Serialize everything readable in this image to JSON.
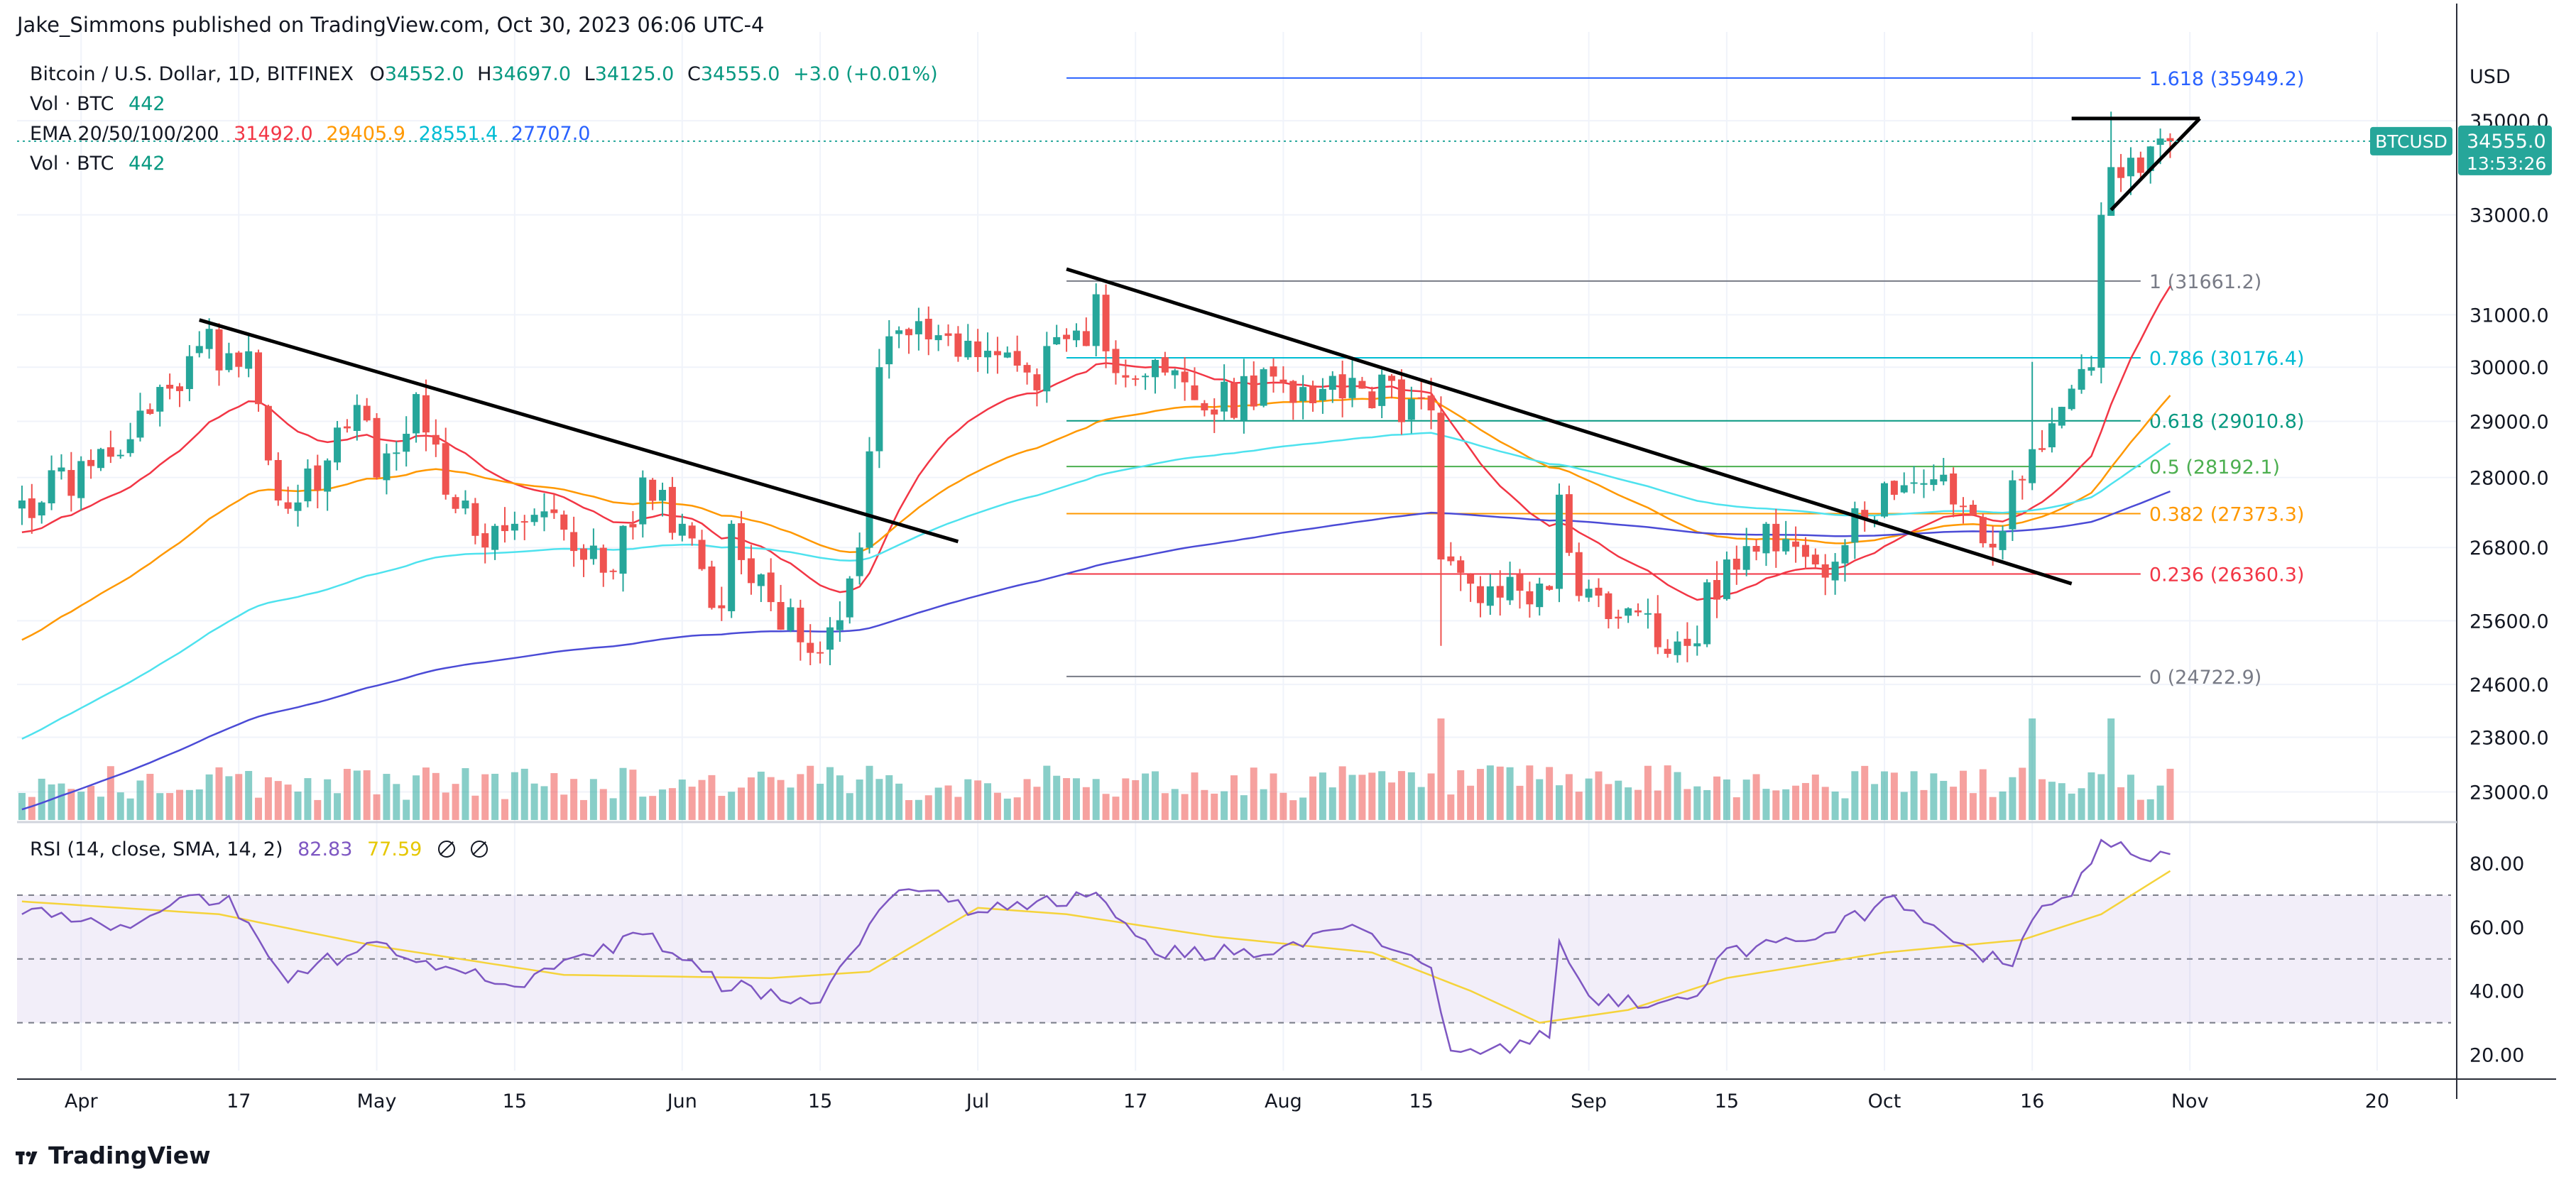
{
  "publisher_line": "Jake_Simmons published on TradingView.com, Oct 30, 2023 06:06 UTC-4",
  "legend": {
    "symbol": "Bitcoin / U.S. Dollar, 1D, BITFINEX",
    "o_label": "O",
    "o": "34552.0",
    "h_label": "H",
    "h": "34697.0",
    "l_label": "L",
    "l": "34125.0",
    "c_label": "C",
    "c": "34555.0",
    "change": "+3.0 (+0.01%)",
    "vol_label": "Vol · BTC",
    "vol": "442",
    "ema_label": "EMA 20/50/100/200",
    "ema20": "31492.0",
    "ema50": "29405.9",
    "ema100": "28551.4",
    "ema200": "27707.0"
  },
  "rsi_legend": {
    "label": "RSI (14, close, SMA, 14, 2)",
    "rsi": "82.83",
    "sma": "77.59"
  },
  "currency": "USD",
  "last_price": {
    "symbol": "BTCUSD",
    "price": "34555.0",
    "countdown": "13:53:26"
  },
  "watermark": "TradingView",
  "colors": {
    "up": "#26a69a",
    "down": "#ef5350",
    "ema20": "#f23645",
    "ema50": "#ff9800",
    "ema100": "#4ee2ee",
    "ema200": "#4b4bd6",
    "rsi": "#7e57c2",
    "rsi_sma": "#f5d33b"
  },
  "chart_data": {
    "type": "candlestick",
    "price_axis": {
      "scale": "log",
      "ticks": [
        23000,
        23800,
        24600,
        25600,
        26800,
        28000,
        29000,
        30000,
        31000,
        33000,
        35000
      ],
      "range": [
        22600,
        37000
      ]
    },
    "time_axis": {
      "range": [
        "2023-03-26",
        "2023-11-28"
      ],
      "ticks": [
        [
          "2023-04-01",
          "Apr"
        ],
        [
          "2023-04-17",
          "17"
        ],
        [
          "2023-05-01",
          "May"
        ],
        [
          "2023-05-15",
          "15"
        ],
        [
          "2023-06-01",
          "Jun"
        ],
        [
          "2023-06-15",
          "15"
        ],
        [
          "2023-07-01",
          "Jul"
        ],
        [
          "2023-07-17",
          "17"
        ],
        [
          "2023-08-01",
          "Aug"
        ],
        [
          "2023-08-15",
          "15"
        ],
        [
          "2023-09-01",
          "Sep"
        ],
        [
          "2023-09-15",
          "15"
        ],
        [
          "2023-10-01",
          "Oct"
        ],
        [
          "2023-10-16",
          "16"
        ],
        [
          "2023-11-01",
          "Nov"
        ],
        [
          "2023-11-20",
          "20"
        ]
      ]
    },
    "anchors": [
      [
        "2023-03-26",
        27600
      ],
      [
        "2023-04-02",
        28200
      ],
      [
        "2023-04-05",
        28400
      ],
      [
        "2023-04-10",
        29600
      ],
      [
        "2023-04-13",
        30400
      ],
      [
        "2023-04-18",
        30300
      ],
      [
        "2023-04-20",
        28300
      ],
      [
        "2023-04-21",
        27600
      ],
      [
        "2023-04-26",
        28300
      ],
      [
        "2023-04-29",
        29300
      ],
      [
        "2023-05-01",
        28000
      ],
      [
        "2023-05-05",
        29500
      ],
      [
        "2023-05-06",
        28800
      ],
      [
        "2023-05-08",
        27700
      ],
      [
        "2023-05-12",
        26800
      ],
      [
        "2023-05-15",
        27200
      ],
      [
        "2023-05-20",
        27100
      ],
      [
        "2023-05-25",
        26400
      ],
      [
        "2023-05-28",
        28000
      ],
      [
        "2023-06-01",
        27200
      ],
      [
        "2023-06-05",
        25800
      ],
      [
        "2023-06-06",
        27200
      ],
      [
        "2023-06-10",
        25900
      ],
      [
        "2023-06-15",
        25100
      ],
      [
        "2023-06-19",
        26800
      ],
      [
        "2023-06-21",
        30000
      ],
      [
        "2023-06-23",
        30700
      ],
      [
        "2023-06-30",
        30500
      ],
      [
        "2023-07-06",
        29900
      ],
      [
        "2023-07-12",
        30400
      ],
      [
        "2023-07-13",
        31400
      ],
      [
        "2023-07-14",
        30300
      ],
      [
        "2023-07-20",
        29900
      ],
      [
        "2023-07-24",
        29200
      ],
      [
        "2023-08-01",
        29700
      ],
      [
        "2023-08-08",
        29800
      ],
      [
        "2023-08-09",
        29600
      ],
      [
        "2023-08-16",
        29200
      ],
      [
        "2023-08-17",
        26600
      ],
      [
        "2023-08-20",
        26200
      ],
      [
        "2023-08-28",
        26100
      ],
      [
        "2023-08-29",
        27700
      ],
      [
        "2023-08-31",
        26000
      ],
      [
        "2023-09-05",
        25800
      ],
      [
        "2023-09-11",
        25200
      ],
      [
        "2023-09-15",
        26600
      ],
      [
        "2023-09-19",
        27200
      ],
      [
        "2023-09-25",
        26300
      ],
      [
        "2023-10-01",
        27900
      ],
      [
        "2023-10-05",
        27900
      ],
      [
        "2023-10-09",
        27500
      ],
      [
        "2023-10-12",
        26800
      ],
      [
        "2023-10-16",
        28500
      ],
      [
        "2023-10-20",
        29600
      ],
      [
        "2023-10-22",
        30000
      ],
      [
        "2023-10-23",
        33000
      ],
      [
        "2023-10-24",
        34000
      ],
      [
        "2023-10-26",
        34200
      ],
      [
        "2023-10-30",
        34555
      ]
    ],
    "spikes": [
      [
        "2023-08-17",
        25200
      ],
      [
        "2023-10-16",
        30100
      ],
      [
        "2023-10-24",
        35200
      ]
    ],
    "ema_final": {
      "ema20": 31492.0,
      "ema50": 29405.9,
      "ema100": 28551.4,
      "ema200": 27707.0
    },
    "fib_levels": [
      {
        "ratio": "1.618",
        "price": 35949.2,
        "label": "1.618 (35949.2)",
        "color": "#2962ff"
      },
      {
        "ratio": "1",
        "price": 31661.2,
        "label": "1 (31661.2)",
        "color": "#787b86"
      },
      {
        "ratio": "0.786",
        "price": 30176.4,
        "label": "0.786 (30176.4)",
        "color": "#00bcd4"
      },
      {
        "ratio": "0.618",
        "price": 29010.8,
        "label": "0.618 (29010.8)",
        "color": "#089981"
      },
      {
        "ratio": "0.5",
        "price": 28192.1,
        "label": "0.5 (28192.1)",
        "color": "#4caf50"
      },
      {
        "ratio": "0.382",
        "price": 27373.3,
        "label": "0.382 (27373.3)",
        "color": "#ff9800"
      },
      {
        "ratio": "0.236",
        "price": 26360.3,
        "label": "0.236 (26360.3)",
        "color": "#f23645"
      },
      {
        "ratio": "0",
        "price": 24722.9,
        "label": "0 (24722.9)",
        "color": "#787b86"
      }
    ],
    "fib_range": [
      "2023-07-10",
      "2023-10-27"
    ],
    "trendlines": [
      {
        "from": [
          "2023-04-13",
          30900
        ],
        "to": [
          "2023-06-29",
          26900
        ]
      },
      {
        "from": [
          "2023-07-10",
          31900
        ],
        "to": [
          "2023-10-20",
          26200
        ]
      },
      {
        "from": [
          "2023-10-20",
          35050
        ],
        "to": [
          "2023-11-02",
          35050
        ]
      },
      {
        "from": [
          "2023-10-24",
          33100
        ],
        "to": [
          "2023-11-02",
          35050
        ]
      }
    ],
    "volume_scale_max": 1500,
    "rsi_axis": {
      "ticks": [
        20,
        40,
        60,
        80
      ],
      "band": [
        30,
        70
      ],
      "mid": 50,
      "range": [
        15,
        92
      ]
    },
    "rsi_anchors": [
      [
        "2023-03-26",
        66
      ],
      [
        "2023-04-05",
        60
      ],
      [
        "2023-04-11",
        70
      ],
      [
        "2023-04-16",
        68
      ],
      [
        "2023-04-19",
        55
      ],
      [
        "2023-04-22",
        45
      ],
      [
        "2023-05-01",
        55
      ],
      [
        "2023-05-10",
        46
      ],
      [
        "2023-05-16",
        42
      ],
      [
        "2023-05-28",
        58
      ],
      [
        "2023-06-05",
        42
      ],
      [
        "2023-06-15",
        36
      ],
      [
        "2023-06-21",
        66
      ],
      [
        "2023-06-24",
        72
      ],
      [
        "2023-07-01",
        65
      ],
      [
        "2023-07-05",
        66
      ],
      [
        "2023-07-13",
        70
      ],
      [
        "2023-07-19",
        52
      ],
      [
        "2023-08-01",
        52
      ],
      [
        "2023-08-08",
        60
      ],
      [
        "2023-08-16",
        48
      ],
      [
        "2023-08-18",
        22
      ],
      [
        "2023-08-24",
        22
      ],
      [
        "2023-08-28",
        26
      ],
      [
        "2023-08-29",
        55
      ],
      [
        "2023-09-01",
        38
      ],
      [
        "2023-09-11",
        36
      ],
      [
        "2023-09-15",
        52
      ],
      [
        "2023-09-22",
        56
      ],
      [
        "2023-10-02",
        68
      ],
      [
        "2023-10-10",
        52
      ],
      [
        "2023-10-14",
        48
      ],
      [
        "2023-10-16",
        62
      ],
      [
        "2023-10-20",
        72
      ],
      [
        "2023-10-23",
        85
      ],
      [
        "2023-10-25",
        88
      ],
      [
        "2023-10-27",
        82
      ],
      [
        "2023-10-30",
        82.83
      ]
    ],
    "rsi_sma_anchors": [
      [
        "2023-03-26",
        68
      ],
      [
        "2023-04-15",
        64
      ],
      [
        "2023-05-01",
        54
      ],
      [
        "2023-05-20",
        45
      ],
      [
        "2023-06-10",
        44
      ],
      [
        "2023-06-20",
        46
      ],
      [
        "2023-07-01",
        66
      ],
      [
        "2023-07-10",
        64
      ],
      [
        "2023-07-25",
        57
      ],
      [
        "2023-08-10",
        52
      ],
      [
        "2023-08-20",
        40
      ],
      [
        "2023-08-27",
        30
      ],
      [
        "2023-09-05",
        34
      ],
      [
        "2023-09-15",
        44
      ],
      [
        "2023-10-01",
        52
      ],
      [
        "2023-10-15",
        56
      ],
      [
        "2023-10-23",
        64
      ],
      [
        "2023-10-30",
        77.59
      ]
    ]
  }
}
